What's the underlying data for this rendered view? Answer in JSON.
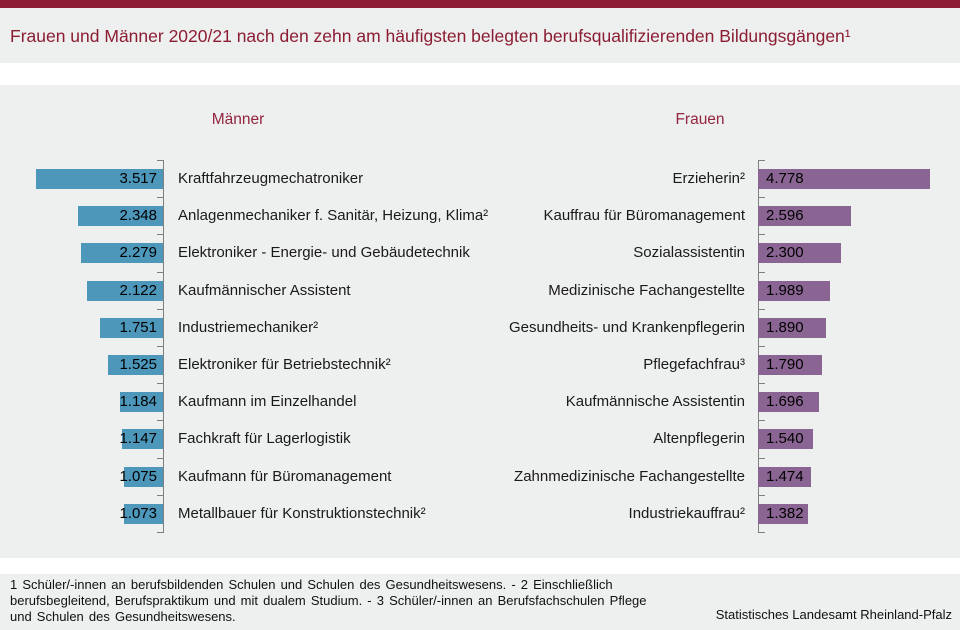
{
  "title": "Frauen und Männer 2020/21 nach den zehn am häufigsten belegten berufsqualifizierenden Bildungsgängen¹",
  "chart_data": {
    "type": "bar",
    "layout": "bilateral-horizontal-pyramid",
    "value_label_position": "inside-bar-at-axis",
    "axis": {
      "visible": true,
      "ticks_per_side": 11,
      "gridlines": false
    },
    "series": [
      {
        "name": "Männer",
        "side": "left",
        "color": "#4d97bb",
        "items": [
          {
            "label": "Kraftfahrzeugmechatroniker",
            "value": 3517,
            "display": "3.517"
          },
          {
            "label": "Anlagenmechaniker f. Sanitär, Heizung, Klima²",
            "value": 2348,
            "display": "2.348"
          },
          {
            "label": "Elektroniker - Energie- und Gebäudetechnik",
            "value": 2279,
            "display": "2.279"
          },
          {
            "label": "Kaufmännischer Assistent",
            "value": 2122,
            "display": "2.122"
          },
          {
            "label": "Industriemechaniker²",
            "value": 1751,
            "display": "1.751"
          },
          {
            "label": "Elektroniker für Betriebstechnik²",
            "value": 1525,
            "display": "1.525"
          },
          {
            "label": "Kaufmann im Einzelhandel",
            "value": 1184,
            "display": "1.184"
          },
          {
            "label": "Fachkraft für Lagerlogistik",
            "value": 1147,
            "display": "1.147"
          },
          {
            "label": "Kaufmann für Büromanagement",
            "value": 1075,
            "display": "1.075"
          },
          {
            "label": "Metallbauer für Konstruktionstechnik²",
            "value": 1073,
            "display": "1.073"
          }
        ]
      },
      {
        "name": "Frauen",
        "side": "right",
        "color": "#8a6593",
        "items": [
          {
            "label": "Erzieherin²",
            "value": 4778,
            "display": "4.778"
          },
          {
            "label": "Kauffrau für Büromanagement",
            "value": 2596,
            "display": "2.596"
          },
          {
            "label": "Sozialassistentin",
            "value": 2300,
            "display": "2.300"
          },
          {
            "label": "Medizinische Fachangestellte",
            "value": 1989,
            "display": "1.989"
          },
          {
            "label": "Gesundheits- und Krankenpflegerin",
            "value": 1890,
            "display": "1.890"
          },
          {
            "label": "Pflegefachfrau³",
            "value": 1790,
            "display": "1.790"
          },
          {
            "label": "Kaufmännische Assistentin",
            "value": 1696,
            "display": "1.696"
          },
          {
            "label": "Altenpflegerin",
            "value": 1540,
            "display": "1.540"
          },
          {
            "label": "Zahnmedizinische Fachangestellte",
            "value": 1474,
            "display": "1.474"
          },
          {
            "label": "Industriekauffrau²",
            "value": 1382,
            "display": "1.382"
          }
        ]
      }
    ]
  },
  "footnotes": "1 Schüler/-innen an berufsbildenden Schulen und Schulen des Gesundheitswesens. - 2 Einschließlich berufsbegleitend, Berufspraktikum und mit dualem Studium. - 3 Schüler/-innen an Berufsfachschulen Pflege und Schulen des Gesundheitswesens.",
  "source": "Statistisches Landesamt Rheinland-Pfalz",
  "colors": {
    "accent_bar": "#8c1d33",
    "title_text": "#8b1d33",
    "header_text": "#93253f",
    "men_bar": "#4d97bb",
    "women_bar": "#8a6593",
    "axis": "#7f7f7f",
    "band_background": "#eeefef",
    "page_background": "#ffffff",
    "label_text": "#1a1a1a"
  }
}
